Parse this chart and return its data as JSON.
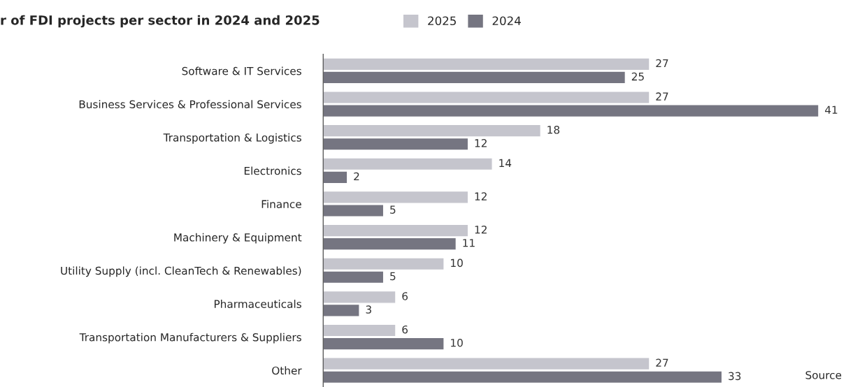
{
  "chart_data": {
    "type": "bar",
    "orientation": "horizontal",
    "title": "r of FDI projects per sector in 2024 and 2025",
    "categories": [
      "Software & IT Services",
      "Business Services & Professional Services",
      "Transportation & Logistics",
      "Electronics",
      "Finance",
      "Machinery & Equipment",
      "Utility Supply (incl. CleanTech & Renewables)",
      "Pharmaceuticals",
      "Transportation Manufacturers & Suppliers",
      "Other"
    ],
    "series": [
      {
        "name": "2025",
        "color": "#c5c5cd",
        "values": [
          27,
          27,
          18,
          14,
          12,
          12,
          10,
          6,
          6,
          27
        ]
      },
      {
        "name": "2024",
        "color": "#757581",
        "values": [
          25,
          41,
          12,
          2,
          5,
          11,
          5,
          3,
          10,
          33
        ]
      }
    ],
    "data_labels": true,
    "legend": "top",
    "grid": false,
    "annotations": [
      "Source"
    ]
  }
}
